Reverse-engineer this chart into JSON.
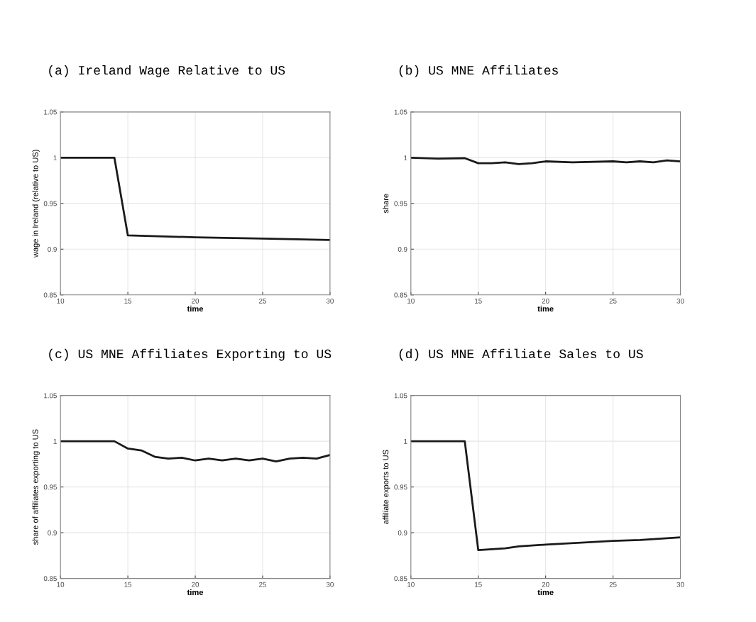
{
  "chart_data": [
    {
      "type": "line",
      "title": "(a) Ireland Wage Relative to US",
      "xlabel": "time",
      "ylabel": "wage in Ireland (relative to US)",
      "grid": true,
      "xlim": [
        10,
        30
      ],
      "ylim": [
        0.85,
        1.05
      ],
      "xticks": [
        10,
        15,
        20,
        25,
        30
      ],
      "yticks": [
        0.85,
        0.9,
        0.95,
        1,
        1.05
      ],
      "series": [
        {
          "color": "#1a1a1a",
          "x": [
            10,
            11,
            12,
            13,
            14,
            15,
            20,
            25,
            30
          ],
          "values": [
            1,
            1,
            1,
            1,
            1,
            0.915,
            0.913,
            0.9115,
            0.91
          ]
        }
      ]
    },
    {
      "type": "line",
      "title": "(b) US MNE Affiliates",
      "xlabel": "time",
      "ylabel": "share",
      "grid": true,
      "xlim": [
        10,
        30
      ],
      "ylim": [
        0.85,
        1.05
      ],
      "xticks": [
        10,
        15,
        20,
        25,
        30
      ],
      "yticks": [
        0.85,
        0.9,
        0.95,
        1,
        1.05
      ],
      "series": [
        {
          "color": "#1a1a1a",
          "x": [
            10,
            12,
            14,
            15,
            16,
            17,
            18,
            19,
            20,
            22,
            25,
            26,
            27,
            28,
            29,
            30
          ],
          "values": [
            1.0,
            0.999,
            0.9995,
            0.994,
            0.994,
            0.995,
            0.993,
            0.994,
            0.996,
            0.995,
            0.996,
            0.995,
            0.996,
            0.995,
            0.997,
            0.996
          ]
        }
      ]
    },
    {
      "type": "line",
      "title": "(c) US MNE Affiliates Exporting to US",
      "xlabel": "time",
      "ylabel": "share of affiliates exporting to US",
      "grid": true,
      "xlim": [
        10,
        30
      ],
      "ylim": [
        0.85,
        1.05
      ],
      "xticks": [
        10,
        15,
        20,
        25,
        30
      ],
      "yticks": [
        0.85,
        0.9,
        0.95,
        1,
        1.05
      ],
      "series": [
        {
          "color": "#1a1a1a",
          "x": [
            10,
            11,
            12,
            13,
            14,
            15,
            16,
            17,
            18,
            19,
            20,
            21,
            22,
            23,
            24,
            25,
            26,
            27,
            28,
            29,
            30
          ],
          "values": [
            1,
            1,
            1,
            1,
            1,
            0.992,
            0.99,
            0.983,
            0.981,
            0.982,
            0.979,
            0.981,
            0.979,
            0.981,
            0.979,
            0.981,
            0.978,
            0.981,
            0.982,
            0.981,
            0.985
          ]
        }
      ]
    },
    {
      "type": "line",
      "title": "(d) US MNE Affiliate Sales to US",
      "xlabel": "time",
      "ylabel": "affiliate exports to US",
      "grid": true,
      "xlim": [
        10,
        30
      ],
      "ylim": [
        0.85,
        1.05
      ],
      "xticks": [
        10,
        15,
        20,
        25,
        30
      ],
      "yticks": [
        0.85,
        0.9,
        0.95,
        1,
        1.05
      ],
      "series": [
        {
          "color": "#1a1a1a",
          "x": [
            10,
            11,
            12,
            13,
            14,
            15,
            16,
            17,
            18,
            20,
            25,
            27,
            30
          ],
          "values": [
            1,
            1,
            1,
            1,
            1,
            0.881,
            0.882,
            0.883,
            0.885,
            0.887,
            0.891,
            0.892,
            0.895
          ]
        }
      ]
    }
  ]
}
